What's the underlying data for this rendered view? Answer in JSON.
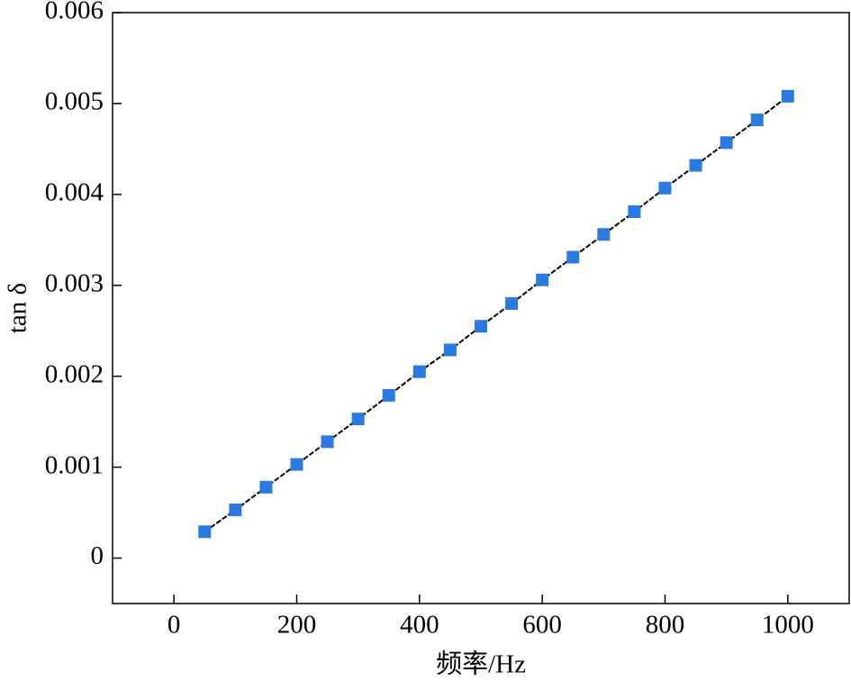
{
  "chart_data": {
    "type": "line",
    "x_label": "频率/Hz",
    "y_label": "tan δ",
    "x": [
      50,
      100,
      150,
      200,
      250,
      300,
      350,
      400,
      450,
      500,
      550,
      600,
      650,
      700,
      750,
      800,
      850,
      900,
      950,
      1000
    ],
    "series": [
      {
        "color": "#2a7ae2",
        "line_color": "#000000",
        "values": [
          0.00029,
          0.00053,
          0.00078,
          0.00103,
          0.00128,
          0.00153,
          0.00179,
          0.00205,
          0.00229,
          0.00255,
          0.0028,
          0.00306,
          0.00331,
          0.00356,
          0.00381,
          0.00407,
          0.00432,
          0.00457,
          0.00482,
          0.00508
        ]
      }
    ],
    "xlim": [
      -100,
      1100
    ],
    "xticks": [
      0,
      200,
      400,
      600,
      800,
      1000
    ],
    "ylim": [
      -0.0005,
      0.006
    ],
    "yticks": [
      0,
      0.001,
      0.002,
      0.003,
      0.004,
      0.005,
      0.006
    ]
  }
}
